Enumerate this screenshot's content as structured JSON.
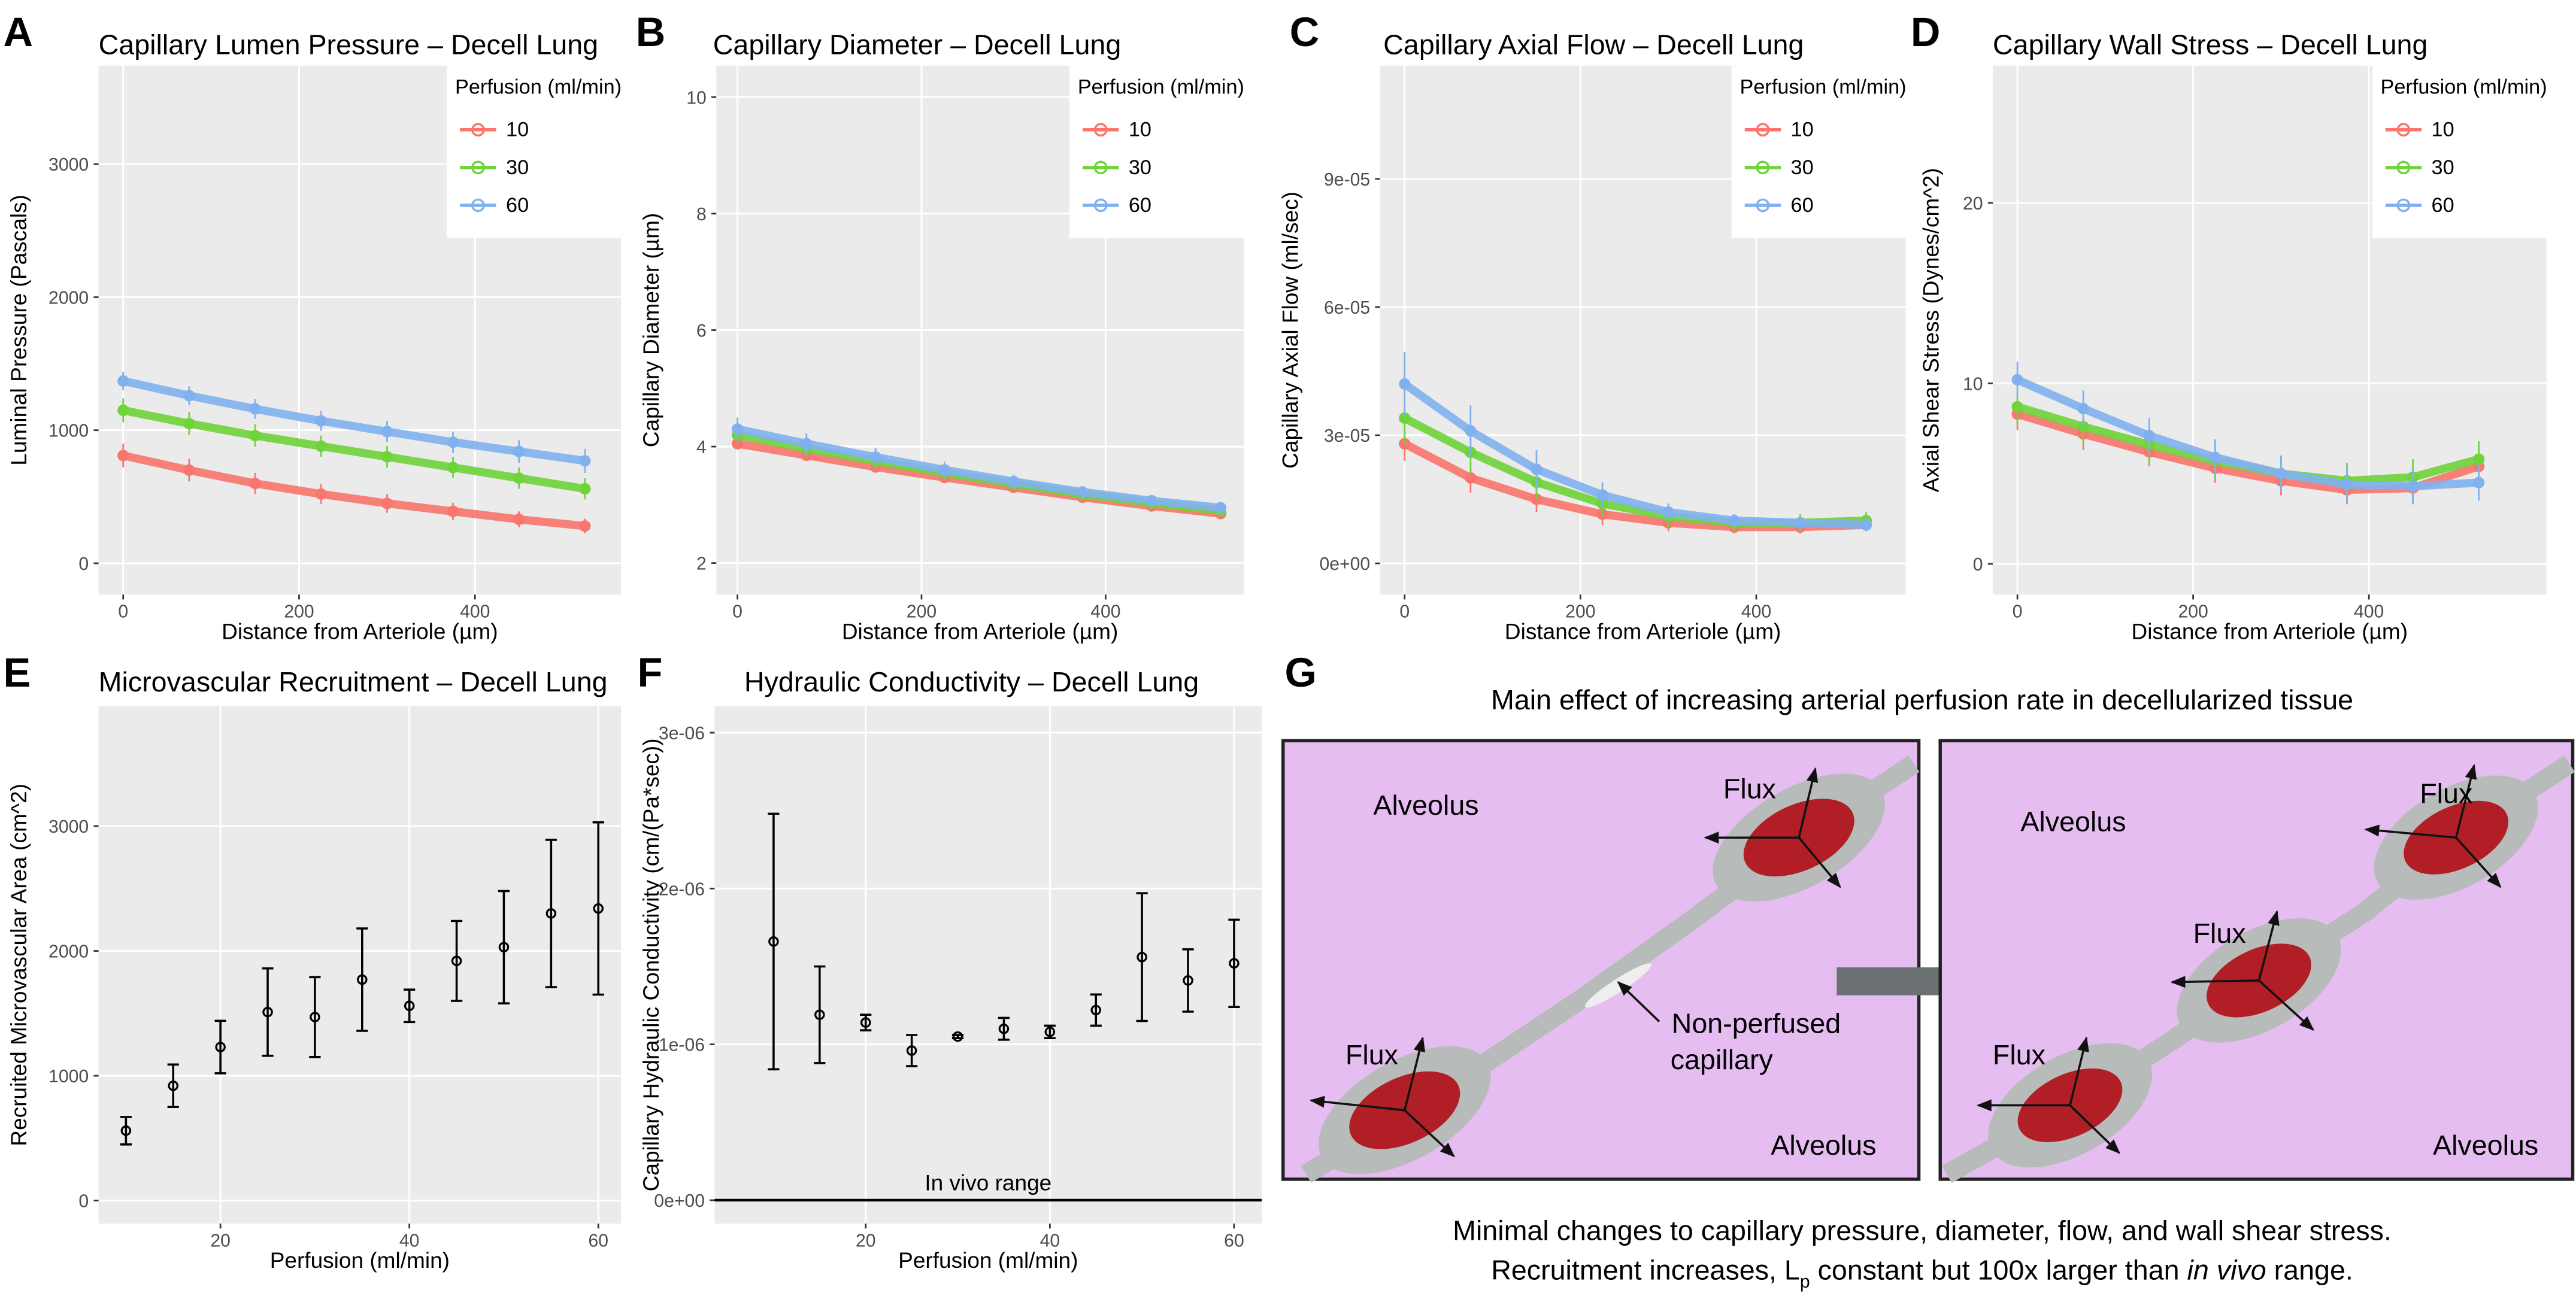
{
  "chart_data": [
    {
      "type": "line",
      "panel_label": "A",
      "title": "Capillary Lumen Pressure – Decell Lung",
      "xlabel": "Distance from Arteriole (µm)",
      "ylabel": "Luminal Pressure (Pascals)",
      "xlim": [
        -28,
        566
      ],
      "ylim": [
        -235,
        3740
      ],
      "xticks": [
        0,
        200,
        400
      ],
      "yticks": [
        0,
        1000,
        2000,
        3000
      ],
      "grid": true,
      "legend": {
        "title": "Perfusion (ml/min)",
        "position": "top-right"
      },
      "x": [
        0,
        75,
        150,
        225,
        300,
        375,
        450,
        525
      ],
      "series": [
        {
          "name": "10",
          "color": "#f8766d",
          "values": [
            810,
            700,
            600,
            520,
            450,
            390,
            330,
            280
          ],
          "errors": [
            90,
            85,
            80,
            75,
            70,
            65,
            60,
            55
          ]
        },
        {
          "name": "30",
          "color": "#6fd33a",
          "values": [
            1150,
            1050,
            960,
            880,
            800,
            720,
            640,
            560
          ],
          "errors": [
            90,
            85,
            85,
            80,
            80,
            80,
            80,
            80
          ]
        },
        {
          "name": "60",
          "color": "#80b1ee",
          "values": [
            1370,
            1260,
            1160,
            1070,
            990,
            910,
            840,
            770
          ],
          "errors": [
            70,
            70,
            75,
            75,
            80,
            80,
            85,
            90
          ]
        }
      ]
    },
    {
      "type": "line",
      "panel_label": "B",
      "title": "Capillary Diameter – Decell Lung",
      "xlabel": "Distance from Arteriole (µm)",
      "ylabel": "Capillary Diameter (µm)",
      "xlim": [
        -23,
        550
      ],
      "ylim": [
        1.46,
        10.54
      ],
      "xticks": [
        0,
        200,
        400
      ],
      "yticks": [
        2,
        4,
        6,
        8,
        10
      ],
      "grid": true,
      "legend": {
        "title": "Perfusion (ml/min)",
        "position": "top-right"
      },
      "x": [
        0,
        75,
        150,
        225,
        300,
        375,
        450,
        525
      ],
      "series": [
        {
          "name": "10",
          "color": "#f8766d",
          "values": [
            4.05,
            3.85,
            3.65,
            3.47,
            3.3,
            3.13,
            2.98,
            2.85
          ],
          "errors": [
            0.08,
            0.08,
            0.07,
            0.07,
            0.06,
            0.06,
            0.05,
            0.05
          ]
        },
        {
          "name": "30",
          "color": "#6fd33a",
          "values": [
            4.2,
            3.97,
            3.75,
            3.55,
            3.36,
            3.18,
            3.03,
            2.9
          ],
          "errors": [
            0.15,
            0.14,
            0.13,
            0.12,
            0.1,
            0.09,
            0.08,
            0.07
          ]
        },
        {
          "name": "60",
          "color": "#80b1ee",
          "values": [
            4.3,
            4.05,
            3.82,
            3.6,
            3.4,
            3.22,
            3.07,
            2.95
          ],
          "errors": [
            0.2,
            0.18,
            0.16,
            0.14,
            0.12,
            0.1,
            0.08,
            0.07
          ]
        }
      ]
    },
    {
      "type": "line",
      "panel_label": "C",
      "title": "Capillary Axial Flow – Decell Lung",
      "xlabel": "Distance from Arteriole (µm)",
      "ylabel": "Capillary Axial Flow (ml/sec)",
      "xlim": [
        -28,
        570
      ],
      "ylim": [
        -7.3e-06,
        0.0001165
      ],
      "xticks": [
        0,
        200,
        400
      ],
      "yticks": [
        {
          "value": 0,
          "label": "0e+00"
        },
        {
          "value": 3e-05,
          "label": "3e-05"
        },
        {
          "value": 6e-05,
          "label": "6e-05"
        },
        {
          "value": 9e-05,
          "label": "9e-05"
        }
      ],
      "grid": true,
      "legend": {
        "title": "Perfusion (ml/min)",
        "position": "top-right"
      },
      "x": [
        0,
        75,
        150,
        225,
        300,
        375,
        450,
        525
      ],
      "series": [
        {
          "name": "10",
          "color": "#f8766d",
          "values": [
            2.8e-05,
            2e-05,
            1.5e-05,
            1.15e-05,
            9.5e-06,
            8.5e-06,
            8.5e-06,
            9e-06
          ],
          "errors": [
            4e-06,
            3.5e-06,
            3e-06,
            2.5e-06,
            2e-06,
            1.5e-06,
            1.5e-06,
            1.5e-06
          ]
        },
        {
          "name": "30",
          "color": "#6fd33a",
          "values": [
            3.4e-05,
            2.6e-05,
            1.9e-05,
            1.4e-05,
            1.1e-05,
            9.5e-06,
            9.5e-06,
            1e-05
          ],
          "errors": [
            6e-06,
            5e-06,
            4e-06,
            3e-06,
            2.5e-06,
            2e-06,
            2e-06,
            2e-06
          ]
        },
        {
          "name": "60",
          "color": "#80b1ee",
          "values": [
            4.2e-05,
            3.1e-05,
            2.2e-05,
            1.6e-05,
            1.2e-05,
            1e-05,
            9.5e-06,
            9e-06
          ],
          "errors": [
            7.5e-06,
            6e-06,
            4.5e-06,
            3e-06,
            2e-06,
            1.5e-06,
            1.5e-06,
            1.5e-06
          ]
        }
      ]
    },
    {
      "type": "line",
      "panel_label": "D",
      "title": "Capillary Wall Stress – Decell Lung",
      "xlabel": "Distance from Arteriole (µm)",
      "ylabel": "Axial Shear Stress (Dynes/cm^2)",
      "xlim": [
        -28,
        602
      ],
      "ylim": [
        -1.7,
        27.6
      ],
      "xticks": [
        0,
        200,
        400
      ],
      "yticks": [
        0,
        10,
        20
      ],
      "grid": true,
      "legend": {
        "title": "Perfusion (ml/min)",
        "position": "top-right"
      },
      "x": [
        0,
        75,
        150,
        225,
        300,
        375,
        450,
        525
      ],
      "series": [
        {
          "name": "10",
          "color": "#f8766d",
          "values": [
            8.3,
            7.2,
            6.2,
            5.3,
            4.6,
            4.1,
            4.2,
            5.4
          ],
          "errors": [
            0.9,
            0.9,
            0.8,
            0.8,
            0.8,
            0.8,
            0.9,
            1.1
          ]
        },
        {
          "name": "30",
          "color": "#6fd33a",
          "values": [
            8.7,
            7.6,
            6.6,
            5.7,
            5.0,
            4.6,
            4.8,
            5.8
          ],
          "errors": [
            1.0,
            1.0,
            1.0,
            1.0,
            1.0,
            1.0,
            1.0,
            1.0
          ]
        },
        {
          "name": "60",
          "color": "#80b1ee",
          "values": [
            10.2,
            8.6,
            7.1,
            5.9,
            5.0,
            4.4,
            4.3,
            4.5
          ],
          "errors": [
            1.0,
            1.0,
            1.0,
            1.0,
            1.0,
            1.0,
            1.0,
            1.0
          ]
        }
      ]
    },
    {
      "type": "scatter",
      "panel_label": "E",
      "title": "Microvascular Recruitment – Decell Lung",
      "xlabel": "Perfusion (ml/min)",
      "ylabel": "Recruited Microvascular Area (cm^2)",
      "xlim": [
        7.1,
        62.4
      ],
      "ylim": [
        -184,
        3960
      ],
      "xticks": [
        20,
        40,
        60
      ],
      "yticks": [
        0,
        1000,
        2000,
        3000
      ],
      "grid": true,
      "color": "#000000",
      "x": [
        10,
        15,
        20,
        25,
        30,
        35,
        40,
        45,
        50,
        55,
        60
      ],
      "values": [
        560,
        920,
        1230,
        1510,
        1470,
        1770,
        1560,
        1920,
        2030,
        2300,
        2340
      ],
      "errors": [
        110,
        170,
        210,
        350,
        320,
        410,
        130,
        320,
        450,
        590,
        690
      ]
    },
    {
      "type": "scatter",
      "panel_label": "F",
      "title": "Hydraulic Conductivity – Decell Lung",
      "xlabel": "Perfusion (ml/min)",
      "ylabel": "Capillary Hydraulic Conductivity (cm/(Pa*sec))",
      "xlim": [
        3.6,
        63
      ],
      "ylim": [
        -1.5e-07,
        3.17e-06
      ],
      "xticks": [
        20,
        40,
        60
      ],
      "yticks": [
        {
          "value": 0,
          "label": "0e+00"
        },
        {
          "value": 1e-06,
          "label": "1e-06"
        },
        {
          "value": 2e-06,
          "label": "2e-06"
        },
        {
          "value": 3e-06,
          "label": "3e-06"
        }
      ],
      "grid": true,
      "color": "#000000",
      "x": [
        10,
        15,
        20,
        25,
        30,
        35,
        40,
        45,
        50,
        55,
        60
      ],
      "values": [
        1.66e-06,
        1.19e-06,
        1.14e-06,
        9.6e-07,
        1.05e-06,
        1.1e-06,
        1.08e-06,
        1.22e-06,
        1.56e-06,
        1.41e-06,
        1.52e-06
      ],
      "errors": [
        8.2e-07,
        3.1e-07,
        5e-08,
        1e-07,
        1e-08,
        7e-08,
        4e-08,
        1e-07,
        4.1e-07,
        2e-07,
        2.8e-07
      ],
      "hline": {
        "value": 0,
        "label": "In vivo range"
      }
    }
  ],
  "diagram": {
    "panel_label": "G",
    "title": "Main effect of increasing arterial perfusion rate in decellularized tissue",
    "left": {
      "alveolus_top": "Alveolus",
      "alveolus_bottom": "Alveolus",
      "flux": [
        "Flux",
        "Flux"
      ],
      "note": [
        "Non-perfused",
        "capillary"
      ]
    },
    "right": {
      "alveolus_top": "Alveolus",
      "alveolus_bottom": "Alveolus",
      "flux": [
        "Flux",
        "Flux",
        "Flux"
      ]
    },
    "caption": [
      "Minimal changes to capillary pressure, diameter, flow, and wall shear stress.",
      [
        "Recruitment increases, L",
        "p",
        " constant but 100x larger than ",
        "in vivo",
        " range."
      ]
    ]
  }
}
